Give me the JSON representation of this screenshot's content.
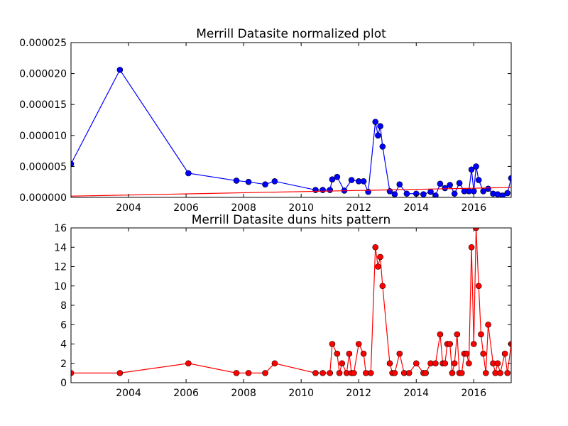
{
  "chart_data": [
    {
      "type": "line",
      "title": "Merrill Datasite normalized plot",
      "xlabel": "",
      "ylabel": "",
      "xlim": [
        2002.0,
        2017.3
      ],
      "ylim": [
        0,
        2.5e-05
      ],
      "x_ticks": [
        2004,
        2006,
        2008,
        2010,
        2012,
        2014,
        2016
      ],
      "x_tick_labels": [
        "2004",
        "2006",
        "2008",
        "2010",
        "2012",
        "2014",
        "2016"
      ],
      "y_ticks": [
        0,
        5e-06,
        1e-05,
        1.5e-05,
        2e-05,
        2.5e-05
      ],
      "y_tick_labels": [
        "0.000000",
        "0.000005",
        "0.000010",
        "0.000015",
        "0.000020",
        "0.000025"
      ],
      "grid": false,
      "series": [
        {
          "color": "#0000ff",
          "marker_color": "#0000ff",
          "x": [
            2002.0,
            2003.7,
            2006.08,
            2007.75,
            2008.17,
            2008.75,
            2009.08,
            2010.5,
            2010.75,
            2011.0,
            2011.08,
            2011.25,
            2011.5,
            2011.75,
            2012.0,
            2012.17,
            2012.33,
            2012.58,
            2012.67,
            2012.75,
            2012.83,
            2013.08,
            2013.25,
            2013.42,
            2013.67,
            2014.0,
            2014.25,
            2014.5,
            2014.67,
            2014.83,
            2015.0,
            2015.17,
            2015.33,
            2015.5,
            2015.67,
            2015.83,
            2015.92,
            2016.0,
            2016.08,
            2016.17,
            2016.33,
            2016.5,
            2016.67,
            2016.83,
            2017.0,
            2017.17,
            2017.3
          ],
          "y": [
            5.4e-06,
            2.06e-05,
            3.9e-06,
            2.7e-06,
            2.5e-06,
            2.1e-06,
            2.6e-06,
            1.2e-06,
            1.2e-06,
            1.2e-06,
            2.9e-06,
            3.3e-06,
            1.1e-06,
            2.8e-06,
            2.6e-06,
            2.6e-06,
            9e-07,
            1.22e-05,
            1e-05,
            1.15e-05,
            8.2e-06,
            1e-06,
            5e-07,
            2.1e-06,
            6e-07,
            6e-07,
            5e-07,
            9e-07,
            3e-07,
            2.2e-06,
            1.5e-06,
            2e-06,
            6e-07,
            2.3e-06,
            1e-06,
            1e-06,
            4.5e-06,
            1e-06,
            5e-06,
            2.8e-06,
            1e-06,
            1.4e-06,
            6e-07,
            5e-07,
            3e-07,
            7e-07,
            3.1e-06
          ]
        },
        {
          "color": "#ff0000",
          "marker": "none",
          "x": [
            2002.0,
            2017.3
          ],
          "y": [
            2e-07,
            1.6e-06
          ]
        }
      ]
    },
    {
      "type": "line",
      "title": "Merrill Datasite duns hits pattern",
      "xlabel": "",
      "ylabel": "",
      "xlim": [
        2002.0,
        2017.3
      ],
      "ylim": [
        0,
        16
      ],
      "x_ticks": [
        2004,
        2006,
        2008,
        2010,
        2012,
        2014,
        2016
      ],
      "x_tick_labels": [
        "2004",
        "2006",
        "2008",
        "2010",
        "2012",
        "2014",
        "2016"
      ],
      "y_ticks": [
        0,
        2,
        4,
        6,
        8,
        10,
        12,
        14,
        16
      ],
      "y_tick_labels": [
        "0",
        "2",
        "4",
        "6",
        "8",
        "10",
        "12",
        "14",
        "16"
      ],
      "grid": false,
      "series": [
        {
          "color": "#ff0000",
          "marker_color": "#ff0000",
          "x": [
            2002.0,
            2003.7,
            2006.08,
            2007.75,
            2008.17,
            2008.75,
            2009.08,
            2010.5,
            2010.75,
            2011.0,
            2011.08,
            2011.25,
            2011.33,
            2011.42,
            2011.58,
            2011.67,
            2011.75,
            2011.83,
            2012.0,
            2012.17,
            2012.25,
            2012.42,
            2012.58,
            2012.67,
            2012.75,
            2012.83,
            2013.08,
            2013.17,
            2013.25,
            2013.42,
            2013.58,
            2013.75,
            2014.0,
            2014.25,
            2014.33,
            2014.5,
            2014.67,
            2014.83,
            2014.92,
            2015.0,
            2015.08,
            2015.17,
            2015.25,
            2015.33,
            2015.42,
            2015.5,
            2015.58,
            2015.67,
            2015.75,
            2015.83,
            2015.92,
            2016.0,
            2016.08,
            2016.17,
            2016.25,
            2016.33,
            2016.42,
            2016.5,
            2016.67,
            2016.75,
            2016.83,
            2016.92,
            2017.08,
            2017.17,
            2017.3
          ],
          "y": [
            1,
            1,
            2,
            1,
            1,
            1,
            2,
            1,
            1,
            1,
            4,
            3,
            1,
            2,
            1,
            3,
            1,
            1,
            4,
            3,
            1,
            1,
            14,
            12,
            13,
            10,
            2,
            1,
            1,
            3,
            1,
            1,
            2,
            1,
            1,
            2,
            2,
            5,
            2,
            2,
            4,
            4,
            1,
            2,
            5,
            1,
            1,
            3,
            3,
            2,
            14,
            4,
            16,
            10,
            5,
            3,
            1,
            6,
            2,
            1,
            2,
            1,
            3,
            1,
            4
          ]
        }
      ]
    }
  ]
}
